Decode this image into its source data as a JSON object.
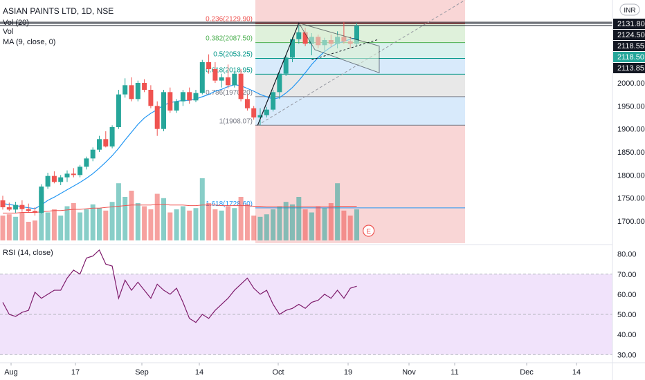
{
  "header": {
    "symbol": "ASIAN PAINTS LTD, 1D, NSE",
    "vol_indicator": "Vol (20)",
    "vol_label": "Vol",
    "ma_indicator": "MA (9, close, 0)",
    "rsi_indicator": "RSI (14, close)",
    "currency": "INR"
  },
  "colors": {
    "up": "#26a69a",
    "down": "#ef5350",
    "ma": "#2196f3",
    "rsi": "#7e1b6b",
    "rsi_band": "#f1e3fb",
    "fib_red": "#f8d1d1",
    "fib_green": "#dcefd7",
    "fib_teal": "#d6f0ec",
    "fib_blue": "#d4e8fb",
    "fib_gray": "#e6e6e6",
    "price_tag": "#131722",
    "volume_ma": "#ef5350"
  },
  "chart_data": [
    {
      "type": "candlestick",
      "title": "ASIAN PAINTS LTD, 1D, NSE",
      "x_axis": {
        "ticks": [
          "Aug",
          "17",
          "Sep",
          "14",
          "Oct",
          "19",
          "Nov",
          "11",
          "Dec",
          "14"
        ]
      },
      "y_axis": {
        "ticks": [
          1700,
          1750,
          1800,
          1850,
          1900,
          1950,
          2000
        ],
        "ylim": [
          1652,
          2180
        ]
      },
      "price_tags": [
        "2131.80",
        "2124.50",
        "2118.55",
        "2118.50",
        "2113.85"
      ],
      "candles": [
        [
          1745,
          1755,
          1725,
          1730
        ],
        [
          1730,
          1740,
          1722,
          1725
        ],
        [
          1725,
          1742,
          1718,
          1735
        ],
        [
          1735,
          1745,
          1720,
          1726
        ],
        [
          1726,
          1738,
          1718,
          1722
        ],
        [
          1722,
          1730,
          1712,
          1718
        ],
        [
          1718,
          1780,
          1716,
          1775
        ],
        [
          1775,
          1805,
          1770,
          1798
        ],
        [
          1798,
          1808,
          1782,
          1785
        ],
        [
          1785,
          1800,
          1778,
          1795
        ],
        [
          1795,
          1810,
          1785,
          1803
        ],
        [
          1803,
          1815,
          1795,
          1800
        ],
        [
          1800,
          1822,
          1795,
          1818
        ],
        [
          1818,
          1840,
          1812,
          1836
        ],
        [
          1836,
          1860,
          1830,
          1855
        ],
        [
          1855,
          1885,
          1850,
          1878
        ],
        [
          1878,
          1895,
          1860,
          1862
        ],
        [
          1862,
          1908,
          1858,
          1904
        ],
        [
          1904,
          1985,
          1900,
          1975
        ],
        [
          1975,
          2010,
          1968,
          1995
        ],
        [
          1995,
          2012,
          1960,
          1965
        ],
        [
          1965,
          2005,
          1960,
          2000
        ],
        [
          2000,
          2008,
          1980,
          1985
        ],
        [
          1985,
          1995,
          1945,
          1950
        ],
        [
          1950,
          1960,
          1885,
          1900
        ],
        [
          1900,
          1985,
          1895,
          1980
        ],
        [
          1980,
          1990,
          1935,
          1940
        ],
        [
          1940,
          1965,
          1935,
          1960
        ],
        [
          1960,
          1985,
          1950,
          1980
        ],
        [
          1980,
          1990,
          1955,
          1962
        ],
        [
          1962,
          1985,
          1958,
          1978
        ],
        [
          1978,
          2050,
          1975,
          2045
        ],
        [
          2045,
          2062,
          2020,
          2030
        ],
        [
          2030,
          2045,
          2000,
          2005
        ],
        [
          2005,
          2020,
          1990,
          2012
        ],
        [
          2012,
          2040,
          1988,
          1995
        ],
        [
          1995,
          2025,
          1990,
          2020
        ],
        [
          2020,
          2030,
          1960,
          1965
        ],
        [
          1965,
          1975,
          1940,
          1945
        ],
        [
          1945,
          1950,
          1920,
          1925
        ],
        [
          1925,
          1945,
          1908,
          1930
        ],
        [
          1930,
          1948,
          1925,
          1942
        ],
        [
          1942,
          1985,
          1938,
          1980
        ],
        [
          1980,
          2025,
          1965,
          2020
        ],
        [
          2020,
          2060,
          2015,
          2055
        ],
        [
          2055,
          2100,
          2045,
          2095
        ],
        [
          2095,
          2125,
          2085,
          2110
        ],
        [
          2110,
          2120,
          2080,
          2085
        ],
        [
          2085,
          2108,
          2060,
          2100
        ],
        [
          2100,
          2105,
          2075,
          2082
        ],
        [
          2082,
          2098,
          2070,
          2093
        ],
        [
          2093,
          2105,
          2078,
          2085
        ],
        [
          2085,
          2112,
          2075,
          2100
        ],
        [
          2100,
          2132,
          2085,
          2090
        ],
        [
          2090,
          2100,
          2075,
          2085
        ],
        [
          2085,
          2130,
          2080,
          2124.5
        ]
      ],
      "ma9": [
        1738,
        1736,
        1734,
        1731,
        1729,
        1727,
        1735,
        1745,
        1752,
        1760,
        1768,
        1776,
        1784,
        1793,
        1803,
        1815,
        1828,
        1842,
        1858,
        1876,
        1893,
        1910,
        1924,
        1934,
        1942,
        1952,
        1957,
        1960,
        1962,
        1962,
        1965,
        1970,
        1975,
        1982,
        1986,
        1992,
        1996,
        1994,
        1988,
        1982,
        1975,
        1970,
        1965,
        1968,
        1978,
        1990,
        2005,
        2022,
        2040,
        2055,
        2068,
        2078,
        2086,
        2090,
        2095,
        2098
      ],
      "volume": [
        40,
        42,
        38,
        45,
        30,
        32,
        80,
        45,
        50,
        40,
        55,
        60,
        45,
        50,
        58,
        52,
        48,
        62,
        92,
        70,
        80,
        60,
        55,
        50,
        75,
        68,
        45,
        50,
        55,
        48,
        52,
        100,
        60,
        50,
        48,
        55,
        52,
        70,
        58,
        40,
        38,
        42,
        50,
        55,
        62,
        58,
        70,
        50,
        45,
        55,
        52,
        60,
        92,
        48,
        40,
        50
      ],
      "volume_ma": [
        44,
        44,
        44,
        45,
        45,
        45,
        46,
        47,
        48,
        48,
        49,
        50,
        50,
        51,
        52,
        52,
        53,
        54,
        55,
        56,
        57,
        57,
        57,
        57,
        58,
        58,
        57,
        57,
        57,
        56,
        56,
        57,
        57,
        57,
        56,
        56,
        56,
        56,
        56,
        55,
        55,
        54,
        54,
        54,
        54,
        54,
        54,
        54,
        54,
        54,
        54,
        54,
        55,
        55,
        55,
        55
      ],
      "fib_levels": [
        {
          "ratio": "0.236",
          "label": "0.236(2129.90)",
          "price": 2129.9
        },
        {
          "ratio": "0.382",
          "label": "0.382(2087.50)",
          "price": 2087.5
        },
        {
          "ratio": "0.5",
          "label": "0.5(2053.25)",
          "price": 2053.25
        },
        {
          "ratio": "0.618",
          "label": "0.618(2018.95)",
          "price": 2018.95
        },
        {
          "ratio": "0.786",
          "label": "0.786(1970.20)",
          "price": 1970.2
        },
        {
          "ratio": "1",
          "label": "1(1908.07)",
          "price": 1908.07
        },
        {
          "ratio": "1.618",
          "label": "1.618(1728.60)",
          "price": 1728.6
        }
      ],
      "earnings_marker": "E"
    },
    {
      "type": "line",
      "title": "RSI (14, close)",
      "y_axis": {
        "ticks": [
          30,
          40,
          50,
          60,
          70,
          80
        ],
        "ylim": [
          27,
          84
        ]
      },
      "band": [
        30,
        70
      ],
      "values": [
        56,
        50,
        49,
        51,
        52,
        61,
        58,
        60,
        62,
        62,
        68,
        72,
        70,
        78,
        79,
        82,
        75,
        74,
        58,
        67,
        62,
        66,
        62,
        58,
        65,
        62,
        60,
        63,
        56,
        48,
        46,
        50,
        48,
        52,
        55,
        58,
        62,
        65,
        68,
        63,
        60,
        62,
        55,
        50,
        52,
        53,
        55,
        53,
        56,
        57,
        60,
        58,
        62,
        58,
        63,
        64
      ]
    }
  ]
}
